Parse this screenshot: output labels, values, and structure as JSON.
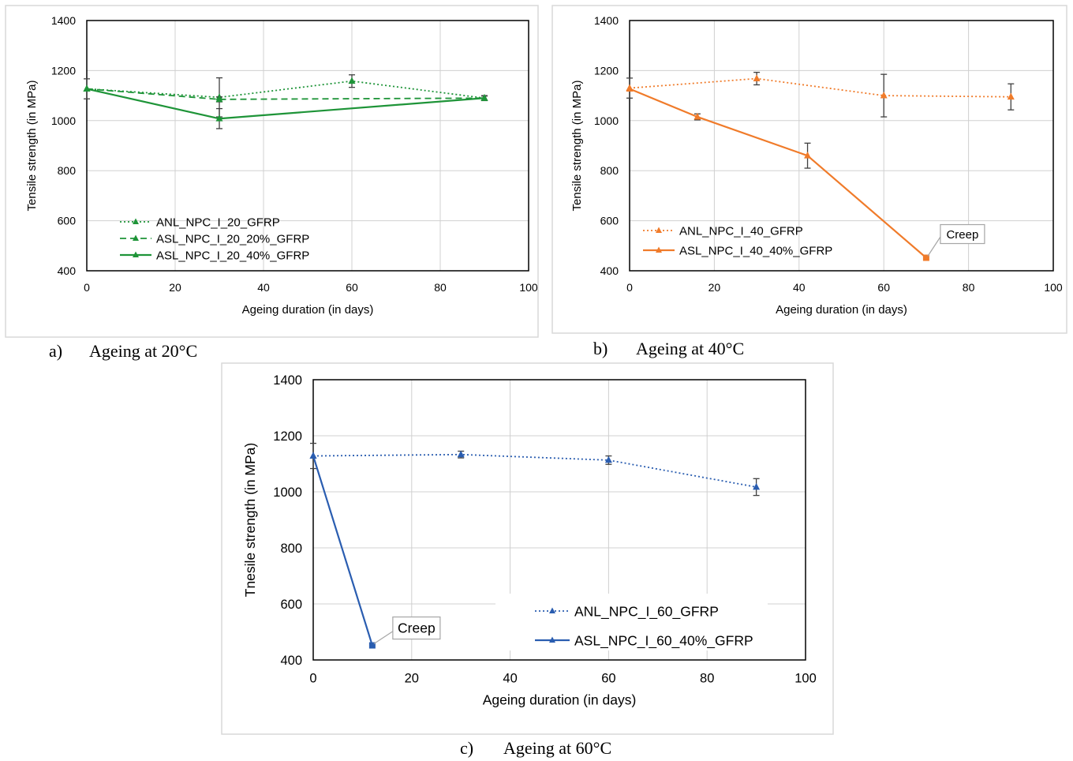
{
  "chart_data": [
    {
      "type": "line",
      "panel": "a",
      "caption_letter": "a)",
      "caption_text": "Ageing at 20°C",
      "xlabel": "Ageing duration (in days)",
      "ylabel": "Tensile strength (in MPa)",
      "xlim": [
        0,
        100
      ],
      "ylim": [
        400,
        1400
      ],
      "xticks": [
        0,
        20,
        40,
        60,
        80,
        100
      ],
      "yticks": [
        400,
        600,
        800,
        1000,
        1200,
        1400
      ],
      "xtick_labels": [
        "0",
        "20",
        "40",
        "60",
        "80",
        "100"
      ],
      "ytick_labels": [
        "400",
        "600",
        "800",
        "1000",
        "1200",
        "1400"
      ],
      "grid": true,
      "legend_position": "bottom-left",
      "color": "#1e9438",
      "series": [
        {
          "name": "ANL_NPC_I_20_GFRP",
          "style": "dotted",
          "marker": "triangle",
          "x": [
            0,
            30,
            60,
            90
          ],
          "y": [
            1127,
            1093,
            1158,
            1090
          ],
          "err": [
            0,
            78,
            25,
            10
          ]
        },
        {
          "name": "ASL_NPC_I_20_20%_GFRP",
          "style": "dashed",
          "marker": "triangle",
          "x": [
            0,
            30,
            90
          ],
          "y": [
            1127,
            1085,
            1090
          ],
          "err": [
            40,
            10,
            0
          ]
        },
        {
          "name": "ASL_NPC_I_20_40%_GFRP",
          "style": "solid",
          "marker": "triangle",
          "x": [
            0,
            30,
            90
          ],
          "y": [
            1127,
            1008,
            1090
          ],
          "err": [
            0,
            40,
            8
          ]
        }
      ],
      "annotations": []
    },
    {
      "type": "line",
      "panel": "b",
      "caption_letter": "b)",
      "caption_text": "Ageing at 40°C",
      "xlabel": "Ageing duration (in days)",
      "ylabel": "Tensile strength (in MPa)",
      "xlim": [
        0,
        100
      ],
      "ylim": [
        400,
        1400
      ],
      "xticks": [
        0,
        20,
        40,
        60,
        80,
        100
      ],
      "yticks": [
        400,
        600,
        800,
        1000,
        1200,
        1400
      ],
      "xtick_labels": [
        "0",
        "20",
        "40",
        "60",
        "80",
        "100"
      ],
      "ytick_labels": [
        "400",
        "600",
        "800",
        "1000",
        "1200",
        "1400"
      ],
      "grid": true,
      "legend_position": "bottom-left",
      "color": "#f07b2a",
      "series": [
        {
          "name": "ANL_NPC_I_40_GFRP",
          "style": "dotted",
          "marker": "triangle",
          "x": [
            0,
            30,
            60,
            90
          ],
          "y": [
            1130,
            1168,
            1100,
            1095
          ],
          "err": [
            40,
            25,
            85,
            52
          ]
        },
        {
          "name": "ASL_NPC_I_40_40%_GFRP",
          "style": "solid",
          "marker": "triangle",
          "x": [
            0,
            16,
            42,
            70
          ],
          "y": [
            1127,
            1015,
            860,
            452
          ],
          "err": [
            0,
            12,
            50,
            0
          ],
          "last_marker": "square"
        }
      ],
      "annotations": [
        {
          "text": "Creep",
          "x": 70,
          "y": 452
        }
      ]
    },
    {
      "type": "line",
      "panel": "c",
      "caption_letter": "c)",
      "caption_text": "Ageing at 60°C",
      "xlabel": "Ageing duration (in days)",
      "ylabel": "Tnesile strength (in MPa)",
      "xlim": [
        0,
        100
      ],
      "ylim": [
        400,
        1400
      ],
      "xticks": [
        0,
        20,
        40,
        60,
        80,
        100
      ],
      "yticks": [
        400,
        600,
        800,
        1000,
        1200,
        1400
      ],
      "xtick_labels": [
        "0",
        "20",
        "40",
        "60",
        "80",
        "100"
      ],
      "ytick_labels": [
        "400",
        "600",
        "800",
        "1000",
        "1200",
        "1400"
      ],
      "grid": true,
      "legend_position": "bottom-right",
      "color": "#2a5db0",
      "series": [
        {
          "name": "ANL_NPC_I_60_GFRP",
          "style": "dotted",
          "marker": "triangle",
          "x": [
            0,
            30,
            60,
            90
          ],
          "y": [
            1128,
            1133,
            1113,
            1017
          ],
          "err": [
            45,
            12,
            15,
            30
          ]
        },
        {
          "name": "ASL_NPC_I_60_40%_GFRP",
          "style": "solid",
          "marker": "triangle",
          "x": [
            0,
            12
          ],
          "y": [
            1128,
            452
          ],
          "err": [
            0,
            0
          ],
          "last_marker": "square"
        }
      ],
      "annotations": [
        {
          "text": "Creep",
          "x": 12,
          "y": 452
        }
      ]
    }
  ]
}
